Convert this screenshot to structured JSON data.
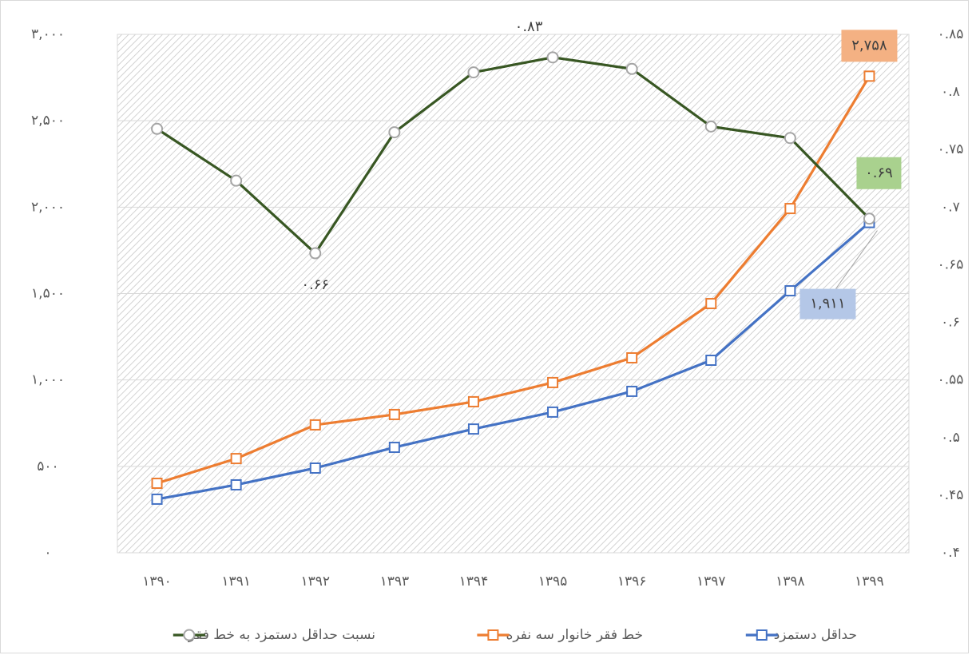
{
  "chart_data": {
    "type": "line",
    "categories": [
      "۱۳۹۰",
      "۱۳۹۱",
      "۱۳۹۲",
      "۱۳۹۳",
      "۱۳۹۴",
      "۱۳۹۵",
      "۱۳۹۶",
      "۱۳۹۷",
      "۱۳۹۸",
      "۱۳۹۹"
    ],
    "series": [
      {
        "name": "حداقل دستمزد",
        "color": "#4472c4",
        "marker": "square",
        "values": [
          310,
          393,
          490,
          610,
          716,
          814,
          934,
          1114,
          1516,
          1911
        ],
        "value_labels": [
          null,
          null,
          null,
          null,
          null,
          null,
          null,
          null,
          null,
          "۱,۹۱۱"
        ]
      },
      {
        "name": "خط فقر خانوار سه نفره",
        "color": "#ed7d31",
        "marker": "square",
        "values": [
          402,
          545,
          740,
          800,
          874,
          985,
          1128,
          1442,
          1992,
          2758
        ],
        "value_labels": [
          null,
          null,
          null,
          null,
          null,
          null,
          null,
          null,
          null,
          "۲,۷۵۸"
        ]
      },
      {
        "name": "نسبت حداقل دستمزد به خط فقر",
        "color": "#385723",
        "marker": "circle",
        "axis": "y2",
        "values": [
          0.768,
          0.723,
          0.66,
          0.765,
          0.817,
          0.83,
          0.82,
          0.77,
          0.76,
          0.69
        ],
        "value_labels": [
          null,
          null,
          "۰.۶۶",
          null,
          null,
          "۰.۸۳",
          null,
          null,
          null,
          "۰.۶۹"
        ]
      }
    ],
    "ylim": [
      0,
      3000
    ],
    "yticks": [
      {
        "value": 0,
        "label": "۰"
      },
      {
        "value": 500,
        "label": "۵۰۰"
      },
      {
        "value": 1000,
        "label": "۱,۰۰۰"
      },
      {
        "value": 1500,
        "label": "۱,۵۰۰"
      },
      {
        "value": 2000,
        "label": "۲,۰۰۰"
      },
      {
        "value": 2500,
        "label": "۲,۵۰۰"
      },
      {
        "value": 3000,
        "label": "۳,۰۰۰"
      }
    ],
    "y2lim": [
      0.4,
      0.85
    ],
    "y2ticks": [
      {
        "value": 0.4,
        "label": "۰.۴"
      },
      {
        "value": 0.45,
        "label": "۰.۴۵"
      },
      {
        "value": 0.5,
        "label": "۰.۵"
      },
      {
        "value": 0.55,
        "label": "۰.۵۵"
      },
      {
        "value": 0.6,
        "label": "۰.۶"
      },
      {
        "value": 0.65,
        "label": "۰.۶۵"
      },
      {
        "value": 0.7,
        "label": "۰.۷"
      },
      {
        "value": 0.75,
        "label": "۰.۷۵"
      },
      {
        "value": 0.8,
        "label": "۰.۸"
      },
      {
        "value": 0.85,
        "label": "۰.۸۵"
      }
    ],
    "grid": true,
    "legend": "bottom"
  }
}
